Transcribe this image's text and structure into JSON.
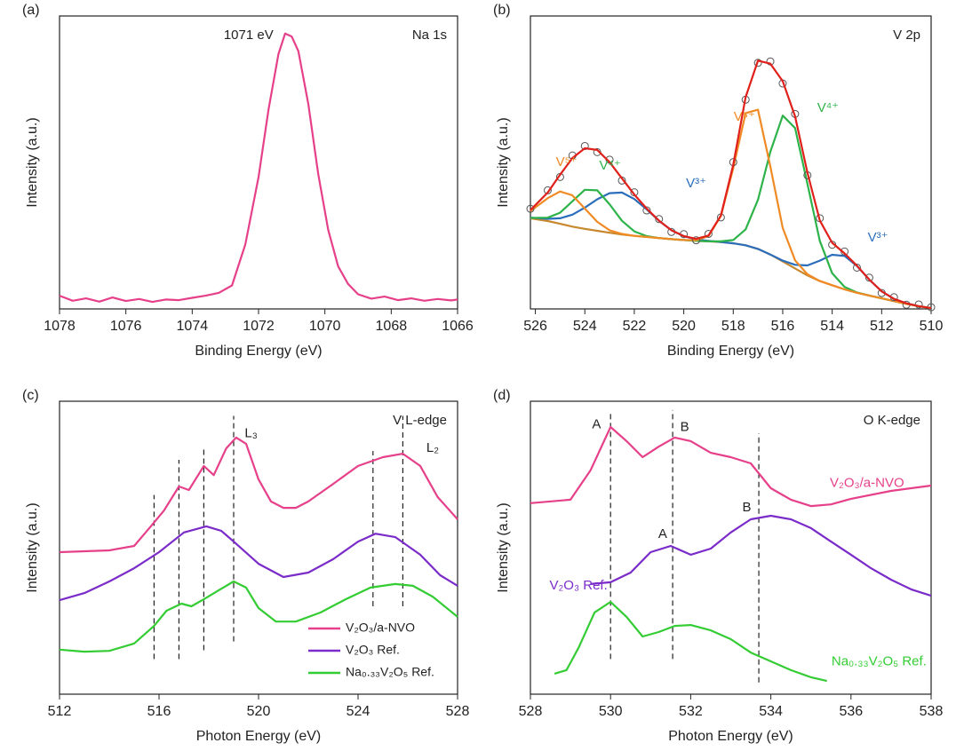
{
  "chart_data": [
    {
      "type": "line",
      "panel": "(a)",
      "inset_label": "Na 1s",
      "xlabel": "Binding Energy (eV)",
      "ylabel": "Intensity (a.u.)",
      "xlim": [
        1078,
        1066
      ],
      "ylim": [
        0,
        100
      ],
      "xticks": [
        1078,
        1076,
        1074,
        1072,
        1070,
        1068,
        1066
      ],
      "x": [
        1078,
        1077.6,
        1077.2,
        1076.8,
        1076.4,
        1076,
        1075.6,
        1075.2,
        1074.8,
        1074.4,
        1074,
        1073.6,
        1073.2,
        1072.8,
        1072.4,
        1072,
        1071.7,
        1071.4,
        1071.2,
        1071,
        1070.8,
        1070.5,
        1070.2,
        1069.9,
        1069.6,
        1069.3,
        1069,
        1068.6,
        1068.2,
        1067.8,
        1067.4,
        1067,
        1066.6,
        1066.2,
        1066
      ],
      "series": [
        {
          "color": "#e6408a",
          "values": [
            4.5,
            2.8,
            3.6,
            2.5,
            3.9,
            2.7,
            3.4,
            2.4,
            3.2,
            3.0,
            3.8,
            4.5,
            5.5,
            8,
            22,
            45,
            68,
            87,
            94,
            93,
            88,
            70,
            46,
            27,
            14.5,
            8.5,
            5,
            3.5,
            4.2,
            3.0,
            3.6,
            2.8,
            3.4,
            2.9,
            3.2
          ]
        }
      ],
      "annotations": [
        {
          "text": "1071 eV",
          "x": 1072.3,
          "y": 93.3,
          "color": "#222222"
        }
      ]
    },
    {
      "type": "line",
      "panel": "(b)",
      "inset_label": "V 2p",
      "xlabel": "Binding Energy (eV)",
      "ylabel": "Intensity (a.u.)",
      "xlim": [
        526.2,
        510
      ],
      "ylim": [
        0,
        105
      ],
      "xticks": [
        526,
        524,
        522,
        520,
        518,
        516,
        514,
        512,
        510
      ],
      "x": [
        526.2,
        525.5,
        525,
        524.5,
        524,
        523.5,
        523,
        522.5,
        522,
        521.5,
        521,
        520.5,
        520,
        519.5,
        519,
        518.5,
        518,
        517.5,
        517,
        516.5,
        516,
        515.5,
        515,
        514.5,
        514,
        513.5,
        513,
        512.5,
        512,
        511.5,
        511,
        510.5,
        510
      ],
      "series": [
        {
          "color": "#c8882e",
          "values": [
            32.5,
            31.5,
            30.5,
            29.5,
            28.7,
            28,
            27.3,
            26.7,
            26.2,
            25.8,
            25.4,
            25,
            24.7,
            24.4,
            24.2,
            24,
            23.5,
            22.8,
            21.5,
            19.5,
            17,
            14.5,
            12,
            10,
            8.5,
            7,
            5.8,
            4.8,
            3.8,
            2.8,
            1.8,
            1,
            0.3
          ]
        },
        {
          "color": "#2a6ebb",
          "values": [
            32.7,
            32.3,
            32.5,
            33.8,
            36.3,
            39.3,
            41.5,
            41.7,
            39.4,
            35.7,
            31.6,
            28.2,
            26.1,
            24.9,
            24.4,
            24,
            23.5,
            22.8,
            21.5,
            19.5,
            17.3,
            15.8,
            15.6,
            17.3,
            19.4,
            19,
            15.4,
            10.5,
            6.3,
            3.6,
            2,
            1,
            0.3
          ]
        },
        {
          "color": "#2db34a",
          "values": [
            32.6,
            32.7,
            34.5,
            38.6,
            42.7,
            42.5,
            37.5,
            31.6,
            27.8,
            26.1,
            25.4,
            25,
            24.7,
            24.4,
            24.2,
            24.2,
            24.7,
            28.5,
            39.1,
            56.3,
            69.3,
            64.8,
            44.8,
            24.4,
            12.8,
            7.9,
            5.9,
            4.8,
            3.8,
            2.8,
            1.8,
            1,
            0.3
          ]
        },
        {
          "color": "#f08a24",
          "values": [
            35.1,
            39.7,
            42.1,
            40.7,
            36.0,
            31.2,
            28.2,
            26.9,
            26.2,
            25.8,
            25.4,
            25,
            24.7,
            24.6,
            26.1,
            33.3,
            50.5,
            70.2,
            71.4,
            51.1,
            29,
            17.4,
            12.4,
            10,
            8.5,
            7,
            5.8,
            4.8,
            3.8,
            2.8,
            1.8,
            1,
            0.3
          ]
        },
        {
          "color": "#555555",
          "mode": "markers",
          "values": [
            35.9,
            42.5,
            47.3,
            55.0,
            58.4,
            56.2,
            53.5,
            46.0,
            41.8,
            35.3,
            32.2,
            27.6,
            26.8,
            24.6,
            26.9,
            32.8,
            52.6,
            75.0,
            88.2,
            88.7,
            80.8,
            69.9,
            47.9,
            32.5,
            23.0,
            20.6,
            14.8,
            11.2,
            5.7,
            4.2,
            1.5,
            1.6,
            0.6
          ]
        },
        {
          "color": "#e0201b",
          "values": [
            35.4,
            41.7,
            48.1,
            54.1,
            57.6,
            57.0,
            52.6,
            46.8,
            41.0,
            36.0,
            31.6,
            28.2,
            26.1,
            25.1,
            26.3,
            33.5,
            51.7,
            75.9,
            89.0,
            87.9,
            81.6,
            69.0,
            48.8,
            31.7,
            23.7,
            19.9,
            15.5,
            10.5,
            6.3,
            3.6,
            2.0,
            1.0,
            0.3
          ]
        }
      ],
      "annotations": [
        {
          "text": "V⁵⁺",
          "x": 524.74,
          "y": 52.5,
          "color": "#f08a24"
        },
        {
          "text": "V⁴⁺",
          "x": 522.98,
          "y": 51.2,
          "color": "#2db34a"
        },
        {
          "text": "V³⁺",
          "x": 519.5,
          "y": 44.9,
          "color": "#2a6ebb"
        },
        {
          "text": "V⁵⁺",
          "x": 517.55,
          "y": 68.7,
          "color": "#f08a24"
        },
        {
          "text": "V⁴⁺",
          "x": 514.17,
          "y": 71.9,
          "color": "#2db34a"
        },
        {
          "text": "V³⁺",
          "x": 512.15,
          "y": 25.4,
          "color": "#2a6ebb"
        }
      ]
    },
    {
      "type": "line",
      "panel": "(c)",
      "inset_label": "V L-edge",
      "xlabel": "Photon Energy (eV)",
      "ylabel": "Intensity (a.u.)",
      "xlim": [
        512,
        528
      ],
      "ylim": [
        0,
        100
      ],
      "xticks": [
        512,
        516,
        520,
        524,
        528
      ],
      "legend": "lower right",
      "series": [
        {
          "name": "V₂O₃/a-NVO",
          "color": "#e6408a",
          "x": [
            512,
            513,
            514,
            515,
            515.7,
            516.2,
            516.8,
            517.2,
            517.8,
            518.2,
            518.7,
            519.1,
            519.5,
            520,
            520.5,
            521,
            521.5,
            522,
            523,
            524,
            525,
            525.8,
            526.5,
            527.2,
            528
          ],
          "values": [
            48.5,
            48.8,
            49.1,
            50.6,
            57.6,
            62.7,
            70.9,
            69.7,
            77.9,
            74.8,
            83.9,
            87.6,
            85.5,
            73.3,
            65.8,
            63.6,
            63.6,
            65.8,
            71.8,
            77.9,
            80.9,
            82.1,
            77.9,
            67.3,
            59.7
          ]
        },
        {
          "name": "V₂O₃ Ref.",
          "color": "#7a2bc9",
          "x": [
            512,
            513,
            514,
            515,
            516,
            517,
            517.9,
            518.5,
            519,
            520,
            521,
            522,
            523,
            524,
            524.7,
            525.5,
            526.5,
            527.3,
            528
          ],
          "values": [
            32.1,
            34.5,
            38.5,
            43,
            48.5,
            55.2,
            57.3,
            55.8,
            52.1,
            44.5,
            40,
            41.5,
            46.1,
            52.1,
            54.8,
            53.6,
            47.6,
            40.6,
            37
          ]
        },
        {
          "name": "Na₀.₃₃V₂O₅ Ref.",
          "color": "#33cc33",
          "x": [
            512,
            513,
            514,
            515,
            515.8,
            516.3,
            516.9,
            517.3,
            517.8,
            518.4,
            519,
            519.5,
            520,
            520.7,
            521.5,
            522.5,
            523.5,
            524.5,
            525.5,
            526.2,
            527,
            528
          ],
          "values": [
            15.2,
            14.5,
            14.8,
            17.3,
            23.3,
            28.5,
            30.9,
            30,
            32.4,
            35.5,
            38.5,
            36.4,
            29.4,
            24.8,
            24.8,
            27.9,
            32.4,
            36.4,
            37.6,
            37,
            33.3,
            26.4
          ]
        }
      ],
      "annotations": [
        {
          "text": "L₃",
          "x": 519.7,
          "y": 89,
          "color": "#222222"
        },
        {
          "text": "L₂",
          "x": 527,
          "y": 84,
          "color": "#222222"
        }
      ],
      "vlines": [
        {
          "x": 515.8,
          "y": [
            12,
            68
          ]
        },
        {
          "x": 516.8,
          "y": [
            12,
            80
          ]
        },
        {
          "x": 517.8,
          "y": [
            15,
            84
          ]
        },
        {
          "x": 519.0,
          "y": [
            18,
            95
          ]
        },
        {
          "x": 524.6,
          "y": [
            30,
            83
          ]
        },
        {
          "x": 525.8,
          "y": [
            30,
            95
          ]
        }
      ]
    },
    {
      "type": "line",
      "panel": "(d)",
      "inset_label": "O K-edge",
      "xlabel": "Photon Energy (eV)",
      "ylabel": "Intensity (a.u.)",
      "xlim": [
        528,
        538
      ],
      "ylim": [
        0,
        100
      ],
      "xticks": [
        528,
        530,
        532,
        534,
        536,
        538
      ],
      "series": [
        {
          "color": "#e6408a",
          "x": [
            528,
            529,
            529.5,
            530,
            530.4,
            530.8,
            531.2,
            531.6,
            532,
            532.5,
            533,
            533.5,
            534,
            534.5,
            535,
            535.5,
            536,
            537,
            538
          ],
          "values": [
            65.2,
            66.4,
            76.4,
            91.2,
            86.4,
            80.9,
            84.5,
            87.6,
            86.4,
            82.4,
            80.9,
            78.8,
            70.3,
            66.4,
            64.2,
            64.8,
            66.7,
            69.4,
            71.2
          ]
        },
        {
          "color": "#7a2bc9",
          "x": [
            529.5,
            530,
            530.5,
            531,
            531.5,
            532,
            532.5,
            533,
            533.5,
            534,
            534.5,
            535,
            535.5,
            536,
            536.5,
            537,
            537.5,
            538
          ],
          "values": [
            37.6,
            38.2,
            41.5,
            48.5,
            50.6,
            47.6,
            49.7,
            55.2,
            59.7,
            60.9,
            59.7,
            56.7,
            52.1,
            47.6,
            43,
            39.1,
            35.8,
            33.6
          ]
        },
        {
          "color": "#33cc33",
          "x": [
            528.6,
            528.9,
            529.2,
            529.6,
            530,
            530.4,
            530.8,
            531.2,
            531.6,
            532,
            532.5,
            533,
            533.5,
            534,
            534.5,
            535,
            535.4
          ],
          "values": [
            7,
            8.2,
            15.8,
            27.9,
            31.5,
            26.4,
            19.7,
            21.2,
            23.3,
            23.6,
            21.8,
            18.8,
            14.2,
            11.2,
            8.2,
            5.8,
            4.5
          ]
        }
      ],
      "annotations": [
        {
          "text": "A",
          "x": 529.65,
          "y": 92,
          "color": "#222222"
        },
        {
          "text": "B",
          "x": 531.85,
          "y": 91,
          "color": "#222222"
        },
        {
          "text": "A",
          "x": 531.3,
          "y": 54.5,
          "color": "#222222"
        },
        {
          "text": "B",
          "x": 533.4,
          "y": 63.6,
          "color": "#222222"
        },
        {
          "text": "V₂O₃/a-NVO",
          "x": 536.4,
          "y": 72,
          "color": "#e6408a"
        },
        {
          "text": "V₂O₃ Ref.",
          "x": 529.2,
          "y": 37,
          "color": "#7a2bc9"
        },
        {
          "text": "Na₀.₃₃V₂O₅ Ref.",
          "x": 536.7,
          "y": 11,
          "color": "#33cc33"
        }
      ],
      "vlines": [
        {
          "x": 530.0,
          "y": [
            12,
            96
          ]
        },
        {
          "x": 531.55,
          "y": [
            12,
            97
          ]
        },
        {
          "x": 533.7,
          "y": [
            4,
            89
          ]
        }
      ]
    }
  ]
}
